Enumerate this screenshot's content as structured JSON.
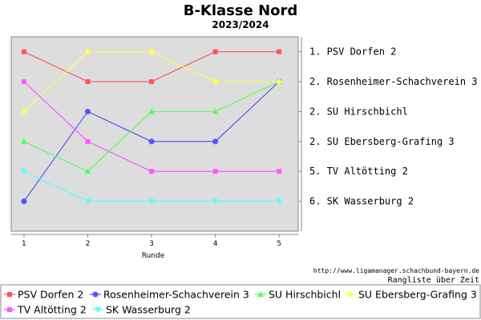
{
  "chart_data": {
    "type": "line",
    "title": "B-Klasse Nord",
    "subtitle": "2023/2024",
    "xlabel": "Runde",
    "ylabel": "",
    "x": [
      1,
      2,
      3,
      4,
      5
    ],
    "x_ticks": [
      "1",
      "2",
      "3",
      "4",
      "5"
    ],
    "xlim": [
      0.8,
      5.3
    ],
    "ylim": [
      0.5,
      7.0
    ],
    "y_inverted": true,
    "grid": false,
    "legend_position": "bottom",
    "series": [
      {
        "name": "PSV Dorfen 2",
        "values": [
          1,
          2,
          2,
          1,
          1
        ],
        "color": "#ff5555",
        "marker": "square"
      },
      {
        "name": "Rosenheimer-Schachverein 3",
        "values": [
          6,
          3,
          4,
          4,
          2
        ],
        "color": "#5555ff",
        "marker": "circle"
      },
      {
        "name": "SU Hirschbichl",
        "values": [
          4,
          5,
          3,
          3,
          2
        ],
        "color": "#55ff55",
        "marker": "triangle-up"
      },
      {
        "name": "SU Ebersberg-Grafing 3",
        "values": [
          3,
          1,
          1,
          2,
          2
        ],
        "color": "#ffff55",
        "marker": "diamond"
      },
      {
        "name": "TV Altötting 2",
        "values": [
          2,
          4,
          5,
          5,
          5
        ],
        "color": "#ff55ff",
        "marker": "square"
      },
      {
        "name": "SK Wasserburg 2",
        "values": [
          5,
          6,
          6,
          6,
          6
        ],
        "color": "#55ffff",
        "marker": "triangle-down"
      }
    ],
    "final_ranking": [
      "1.  PSV Dorfen 2",
      "2.  Rosenheimer-Schachverein 3",
      "2.  SU Hirschbichl",
      "2.  SU Ebersberg-Grafing 3",
      "5.  TV Altötting 2",
      "6.  SK Wasserburg 2"
    ]
  },
  "footer": {
    "source_url": "http://www.ligamanager.schachbund-bayern.de",
    "caption": "Rangliste über Zeit"
  },
  "colors": {
    "plot_background": "#dddddd",
    "plot_border": "#888888"
  }
}
